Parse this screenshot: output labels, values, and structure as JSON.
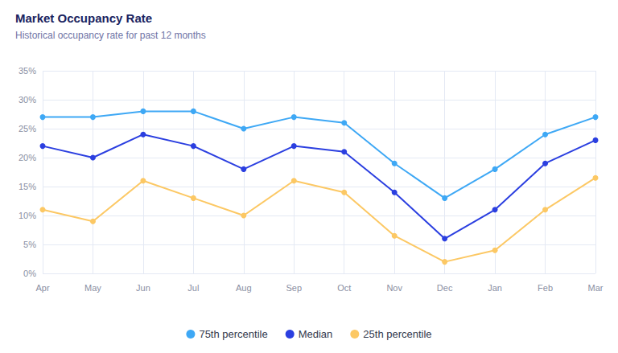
{
  "chart_data": {
    "type": "line",
    "title": "Market Occupancy Rate",
    "subtitle": "Historical occupancy rate for past 12 months",
    "categories": [
      "Apr",
      "May",
      "Jun",
      "Jul",
      "Aug",
      "Sep",
      "Oct",
      "Nov",
      "Dec",
      "Jan",
      "Feb",
      "Mar"
    ],
    "series": [
      {
        "name": "75th percentile",
        "color": "#3ea8f5",
        "values": [
          27,
          27,
          28,
          28,
          25,
          27,
          26,
          19,
          13,
          18,
          24,
          27
        ]
      },
      {
        "name": "Median",
        "color": "#2b3fe0",
        "values": [
          22,
          20,
          24,
          22,
          18,
          22,
          21,
          14,
          6,
          11,
          19,
          23
        ]
      },
      {
        "name": "25th percentile",
        "color": "#fcc864",
        "values": [
          11,
          9,
          16,
          13,
          10,
          16,
          14,
          6.5,
          2,
          4,
          11,
          16.5
        ]
      }
    ],
    "ylim": [
      0,
      35
    ],
    "yticks": [
      {
        "value": 0,
        "label": "0%"
      },
      {
        "value": 5,
        "label": "5%"
      },
      {
        "value": 10,
        "label": "10%"
      },
      {
        "value": 15,
        "label": "15%"
      },
      {
        "value": 20,
        "label": "20%"
      },
      {
        "value": 25,
        "label": "25%"
      },
      {
        "value": 30,
        "label": "30%"
      },
      {
        "value": 35,
        "label": "35%"
      }
    ],
    "grid": true,
    "legend": "bottom",
    "marker": "circle",
    "line_style": "solid"
  }
}
